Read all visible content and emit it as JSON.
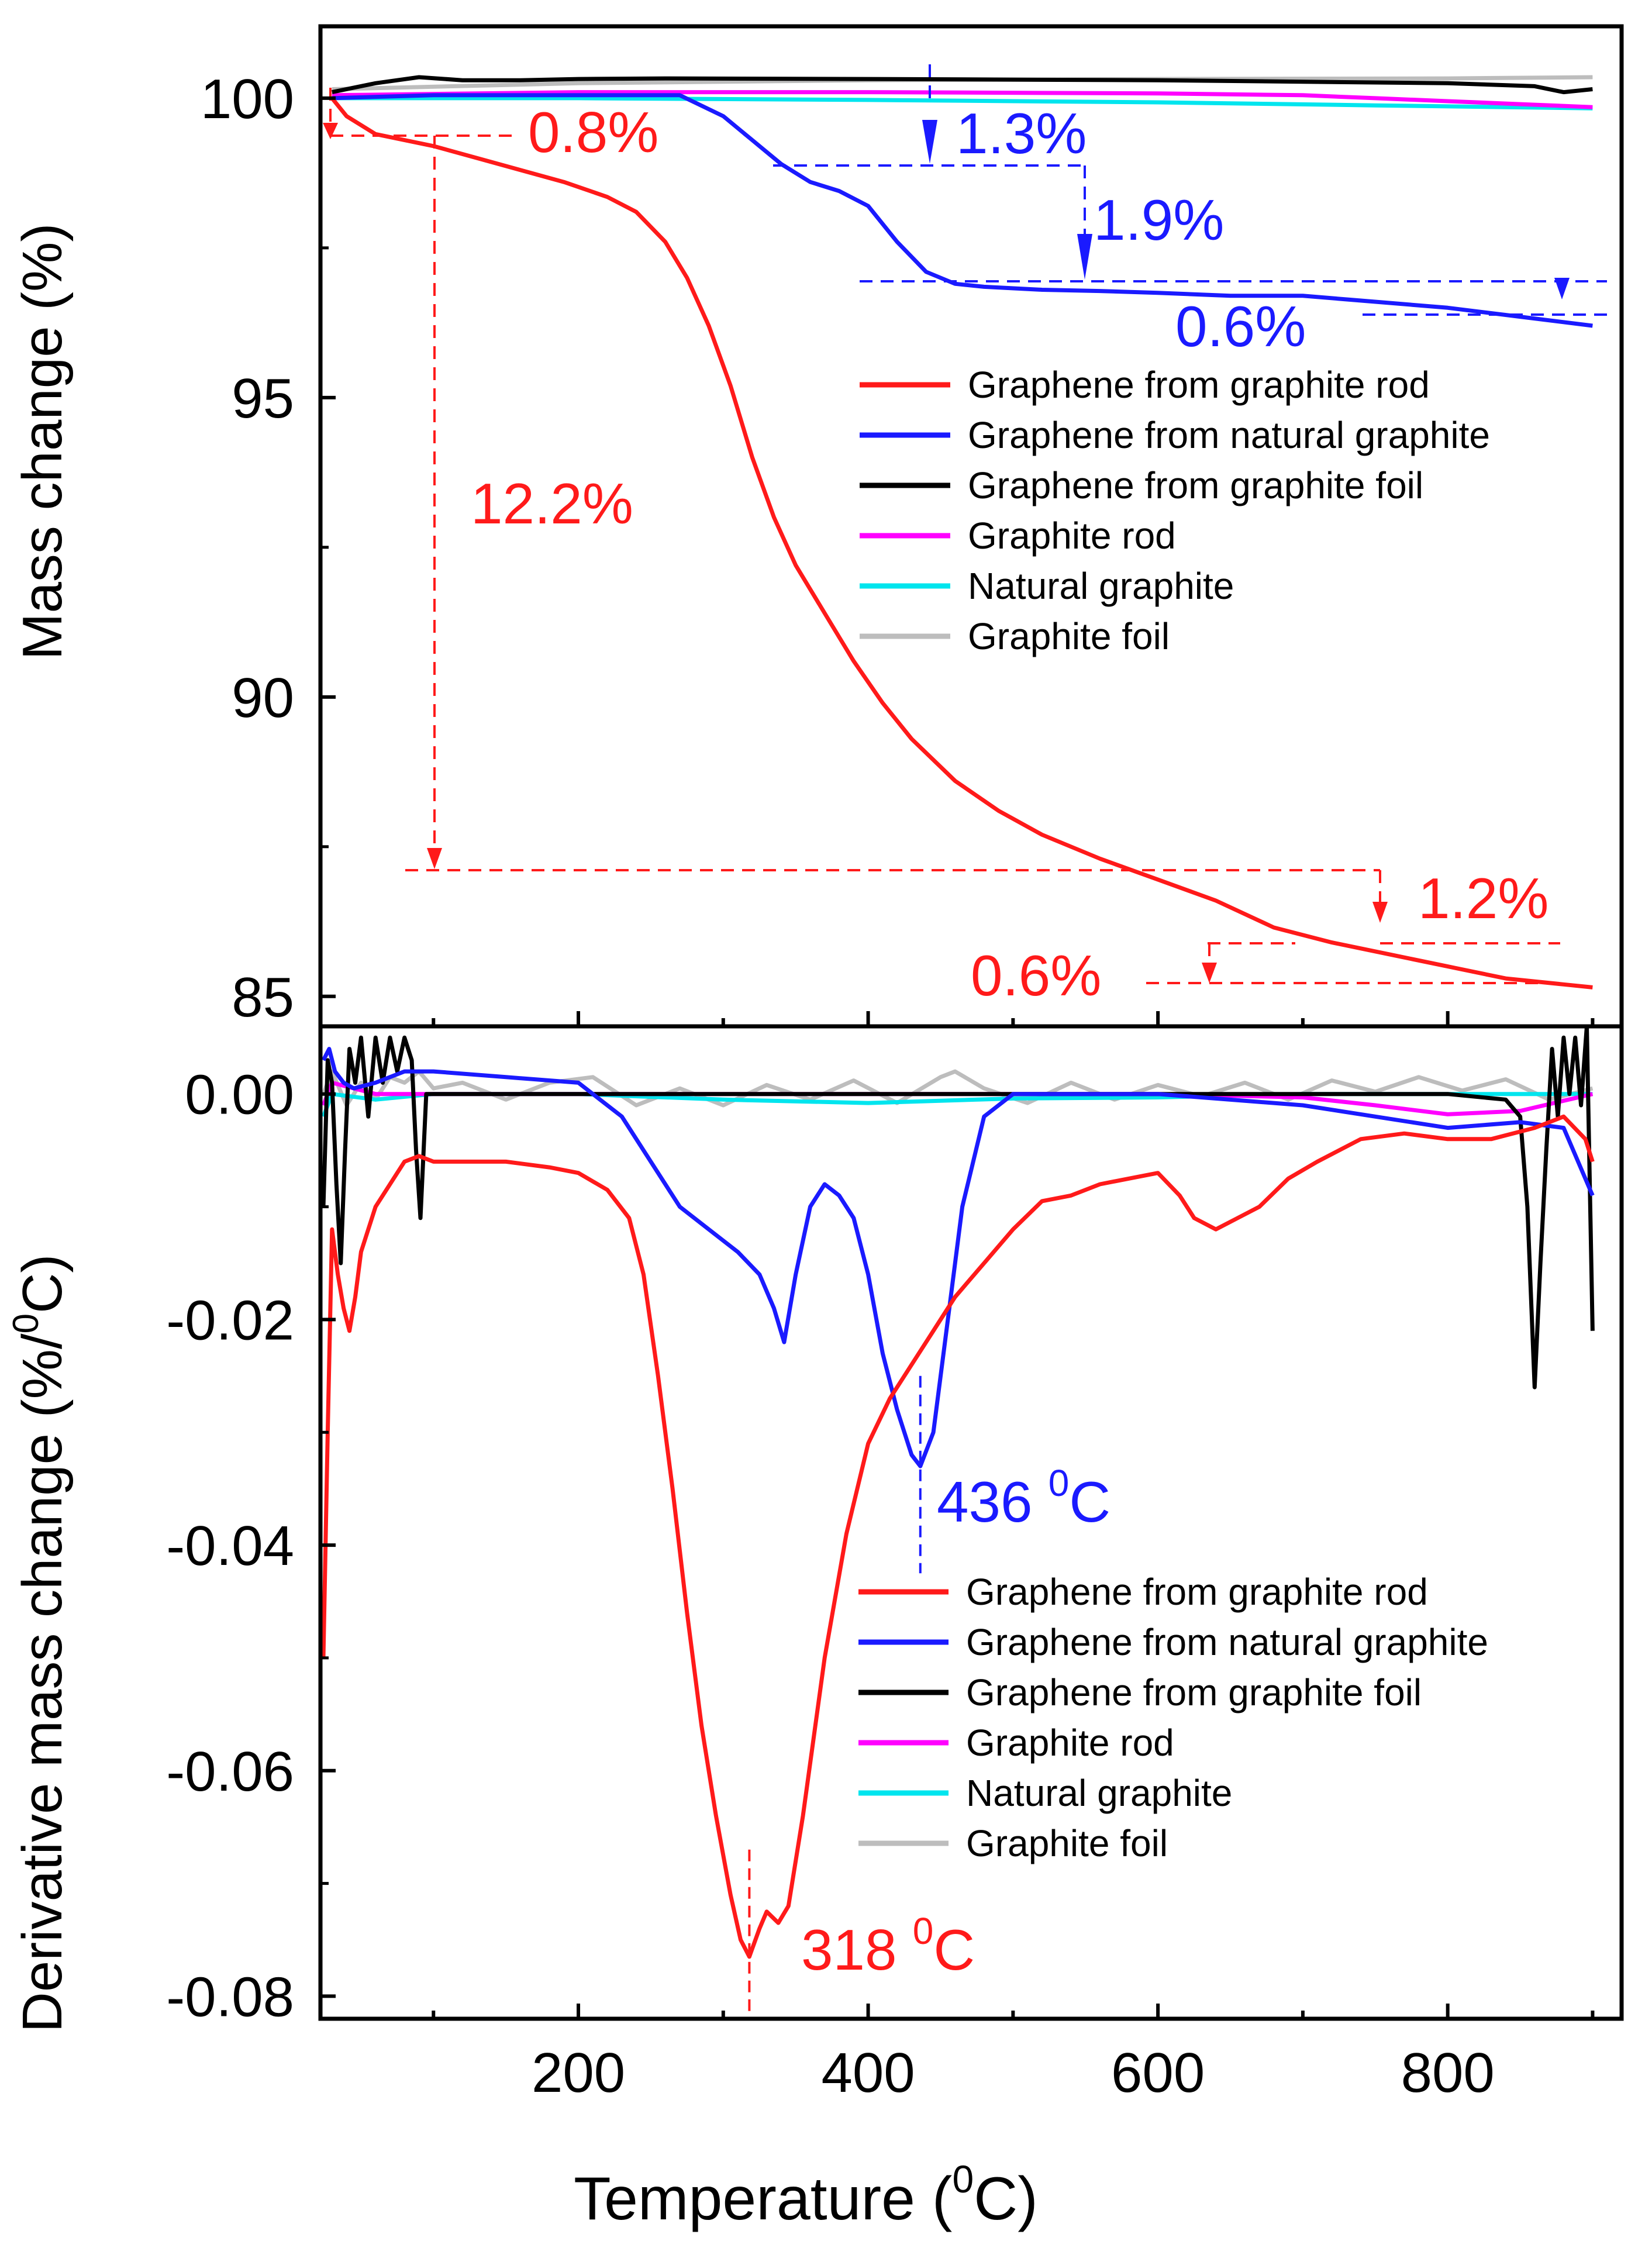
{
  "chart_data": [
    {
      "type": "line",
      "panel": "top",
      "ylabel": "Mass change (%)",
      "xlabel": "",
      "xlim": [
        22,
        920
      ],
      "ylim": [
        84.5,
        101.2
      ],
      "y_ticks": [
        85,
        90,
        95,
        100
      ],
      "y_ticks_labels": [
        "85",
        "90",
        "95",
        "100"
      ],
      "legend_position": "middle-right",
      "series": [
        {
          "name": "Graphene from graphite rod",
          "color": "#ff1a1a",
          "x": [
            30,
            40,
            60,
            80,
            100,
            130,
            160,
            190,
            220,
            240,
            260,
            275,
            290,
            305,
            320,
            335,
            350,
            370,
            390,
            410,
            430,
            460,
            490,
            520,
            560,
            600,
            640,
            680,
            720,
            760,
            800,
            840,
            880,
            900
          ],
          "y": [
            100,
            99.7,
            99.4,
            99.3,
            99.2,
            99.0,
            98.8,
            98.6,
            98.35,
            98.1,
            97.6,
            97.0,
            96.2,
            95.2,
            94.0,
            93.0,
            92.2,
            91.4,
            90.6,
            89.9,
            89.3,
            88.6,
            88.1,
            87.7,
            87.3,
            86.95,
            86.6,
            86.15,
            85.9,
            85.7,
            85.5,
            85.3,
            85.2,
            85.15
          ]
        },
        {
          "name": "Graphene from natural graphite",
          "color": "#1a1aff",
          "x": [
            30,
            100,
            200,
            270,
            300,
            320,
            340,
            360,
            380,
            400,
            420,
            440,
            460,
            480,
            520,
            560,
            600,
            650,
            700,
            750,
            800,
            850,
            900
          ],
          "y": [
            100,
            100.05,
            100.05,
            100.05,
            99.7,
            99.3,
            98.9,
            98.6,
            98.45,
            98.2,
            97.6,
            97.1,
            96.9,
            96.85,
            96.8,
            96.78,
            96.75,
            96.7,
            96.7,
            96.6,
            96.5,
            96.35,
            96.2
          ]
        },
        {
          "name": "Graphene from graphite foil",
          "color": "#000000",
          "x": [
            30,
            60,
            90,
            120,
            160,
            200,
            260,
            400,
            600,
            800,
            860,
            880,
            900
          ],
          "y": [
            100.1,
            100.25,
            100.35,
            100.3,
            100.3,
            100.32,
            100.33,
            100.32,
            100.3,
            100.25,
            100.2,
            100.1,
            100.15
          ]
        },
        {
          "name": "Graphite rod",
          "color": "#ff00ff",
          "x": [
            30,
            200,
            400,
            600,
            700,
            750,
            800,
            850,
            900
          ],
          "y": [
            100.05,
            100.1,
            100.1,
            100.08,
            100.05,
            100.0,
            99.95,
            99.9,
            99.85
          ]
        },
        {
          "name": "Natural graphite",
          "color": "#00e5ee",
          "x": [
            30,
            200,
            400,
            600,
            750,
            900
          ],
          "y": [
            100.0,
            100.0,
            99.97,
            99.93,
            99.88,
            99.83
          ]
        },
        {
          "name": "Graphite foil",
          "color": "#bdbdbd",
          "x": [
            30,
            200,
            400,
            600,
            800,
            900
          ],
          "y": [
            100.15,
            100.25,
            100.3,
            100.32,
            100.33,
            100.35
          ]
        }
      ],
      "annotations": [
        {
          "text": "0.8%",
          "color": "#ff1a1a"
        },
        {
          "text": "12.2%",
          "color": "#ff1a1a"
        },
        {
          "text": "1.2%",
          "color": "#ff1a1a"
        },
        {
          "text": "0.6%",
          "color": "#ff1a1a"
        },
        {
          "text": "1.3%",
          "color": "#1a1aff"
        },
        {
          "text": "1.9%",
          "color": "#1a1aff"
        },
        {
          "text": "0.6%",
          "color": "#1a1aff"
        }
      ]
    },
    {
      "type": "line",
      "panel": "bottom",
      "ylabel_main": "Derivative mass change (%/",
      "ylabel_sup": "0",
      "ylabel_end": "C)",
      "xlabel_main": "Temperature (",
      "xlabel_sup": "0",
      "xlabel_end": "C)",
      "xlim": [
        22,
        920
      ],
      "ylim": [
        -0.082,
        0.006
      ],
      "x_ticks": [
        200,
        400,
        600,
        800
      ],
      "x_ticks_labels": [
        "200",
        "400",
        "600",
        "800"
      ],
      "y_ticks": [
        0.0,
        -0.02,
        -0.04,
        -0.06,
        -0.08
      ],
      "y_ticks_labels": [
        "0.00",
        "-0.02",
        "-0.04",
        "-0.06",
        "-0.08"
      ],
      "legend_position": "lower-right",
      "series": [
        {
          "name": "Graphene from graphite rod",
          "color": "#ff1a1a",
          "x": [
            24,
            27,
            30,
            34,
            38,
            42,
            46,
            50,
            60,
            70,
            80,
            90,
            100,
            120,
            150,
            180,
            200,
            220,
            235,
            245,
            255,
            265,
            275,
            285,
            295,
            305,
            312,
            318,
            325,
            330,
            338,
            345,
            355,
            370,
            385,
            400,
            415,
            430,
            445,
            460,
            480,
            500,
            520,
            540,
            560,
            580,
            600,
            615,
            625,
            640,
            655,
            670,
            690,
            710,
            740,
            770,
            800,
            830,
            860,
            880,
            895,
            900
          ],
          "y": [
            -0.05,
            -0.03,
            -0.012,
            -0.016,
            -0.019,
            -0.021,
            -0.018,
            -0.014,
            -0.01,
            -0.008,
            -0.006,
            -0.0055,
            -0.006,
            -0.006,
            -0.006,
            -0.0065,
            -0.007,
            -0.0085,
            -0.011,
            -0.016,
            -0.025,
            -0.035,
            -0.046,
            -0.056,
            -0.064,
            -0.071,
            -0.075,
            -0.0765,
            -0.074,
            -0.0725,
            -0.0735,
            -0.072,
            -0.064,
            -0.05,
            -0.039,
            -0.031,
            -0.027,
            -0.024,
            -0.021,
            -0.018,
            -0.015,
            -0.012,
            -0.0095,
            -0.009,
            -0.008,
            -0.0075,
            -0.007,
            -0.009,
            -0.011,
            -0.012,
            -0.011,
            -0.01,
            -0.0075,
            -0.006,
            -0.004,
            -0.0035,
            -0.004,
            -0.004,
            -0.003,
            -0.002,
            -0.004,
            -0.006
          ]
        },
        {
          "name": "Graphene from natural graphite",
          "color": "#1a1aff",
          "x": [
            24,
            28,
            32,
            38,
            45,
            60,
            80,
            100,
            150,
            200,
            230,
            250,
            270,
            290,
            310,
            325,
            335,
            342,
            350,
            360,
            370,
            380,
            390,
            400,
            410,
            420,
            430,
            436,
            445,
            455,
            465,
            480,
            500,
            550,
            600,
            700,
            750,
            800,
            850,
            880,
            900
          ],
          "y": [
            0.003,
            0.004,
            0.002,
            0.001,
            0.0005,
            0.001,
            0.002,
            0.002,
            0.0015,
            0.001,
            -0.002,
            -0.006,
            -0.01,
            -0.012,
            -0.014,
            -0.016,
            -0.019,
            -0.022,
            -0.016,
            -0.01,
            -0.008,
            -0.009,
            -0.011,
            -0.016,
            -0.023,
            -0.028,
            -0.032,
            -0.033,
            -0.03,
            -0.02,
            -0.01,
            -0.002,
            0.0,
            0.0,
            0.0,
            -0.001,
            -0.002,
            -0.003,
            -0.0025,
            -0.003,
            -0.009
          ]
        },
        {
          "name": "Graphene from graphite foil",
          "color": "#000000",
          "x": [
            24,
            27,
            30,
            33,
            36,
            39,
            42,
            46,
            50,
            55,
            60,
            65,
            70,
            75,
            80,
            85,
            88,
            91,
            95,
            100,
            140,
            200,
            300,
            400,
            500,
            600,
            700,
            800,
            840,
            850,
            855,
            860,
            864,
            868,
            872,
            876,
            880,
            884,
            888,
            892,
            896,
            900
          ],
          "y": [
            -0.01,
            0.003,
            0.001,
            -0.008,
            -0.015,
            -0.005,
            0.004,
            0.001,
            0.005,
            -0.002,
            0.005,
            0.001,
            0.005,
            0.002,
            0.005,
            0.003,
            -0.005,
            -0.011,
            0.0,
            0.0,
            0.0,
            0.0,
            0.0,
            0.0,
            0.0,
            0.0,
            0.0,
            0.0,
            -0.0005,
            -0.002,
            -0.01,
            -0.026,
            -0.015,
            -0.005,
            0.004,
            -0.002,
            0.005,
            0.0,
            0.005,
            -0.001,
            0.006,
            -0.021
          ]
        },
        {
          "name": "Graphite rod",
          "color": "#ff00ff",
          "x": [
            24,
            30,
            60,
            100,
            200,
            300,
            400,
            500,
            600,
            700,
            750,
            800,
            850,
            900
          ],
          "y": [
            -0.001,
            0.001,
            0.0,
            0.0,
            0.0,
            0.0,
            0.0,
            0.0,
            0.0,
            -0.0003,
            -0.001,
            -0.0018,
            -0.0015,
            0.0
          ]
        },
        {
          "name": "Natural graphite",
          "color": "#00e5ee",
          "x": [
            24,
            30,
            60,
            100,
            200,
            300,
            400,
            500,
            600,
            700,
            800,
            900
          ],
          "y": [
            -0.002,
            0.0,
            -0.0005,
            0.0,
            0.0,
            -0.0005,
            -0.0008,
            -0.0004,
            -0.0003,
            0.0,
            0.0,
            0.0
          ]
        },
        {
          "name": "Graphite foil",
          "color": "#bdbdbd",
          "x": [
            24,
            30,
            40,
            50,
            60,
            70,
            80,
            90,
            100,
            120,
            150,
            180,
            210,
            240,
            270,
            300,
            330,
            360,
            390,
            420,
            450,
            460,
            480,
            510,
            540,
            570,
            600,
            630,
            660,
            690,
            720,
            750,
            780,
            810,
            840,
            870,
            900
          ],
          "y": [
            0.0,
            0.002,
            -0.001,
            0.001,
            -0.0005,
            0.0015,
            0.001,
            0.002,
            0.0005,
            0.001,
            -0.0005,
            0.001,
            0.0015,
            -0.001,
            0.0005,
            -0.001,
            0.0008,
            -0.0005,
            0.0012,
            -0.0008,
            0.0015,
            0.002,
            0.0005,
            -0.0008,
            0.001,
            -0.0005,
            0.0008,
            -0.0002,
            0.001,
            -0.0005,
            0.0012,
            0.0002,
            0.0015,
            0.0003,
            0.0013,
            -0.0005,
            0.0005
          ]
        }
      ],
      "annotations": [
        {
          "text_main": "436 ",
          "text_sup": "0",
          "text_end": "C",
          "color": "#1a1aff",
          "x": 436
        },
        {
          "text_main": "318 ",
          "text_sup": "0",
          "text_end": "C",
          "color": "#ff1a1a",
          "x": 318
        }
      ]
    }
  ]
}
